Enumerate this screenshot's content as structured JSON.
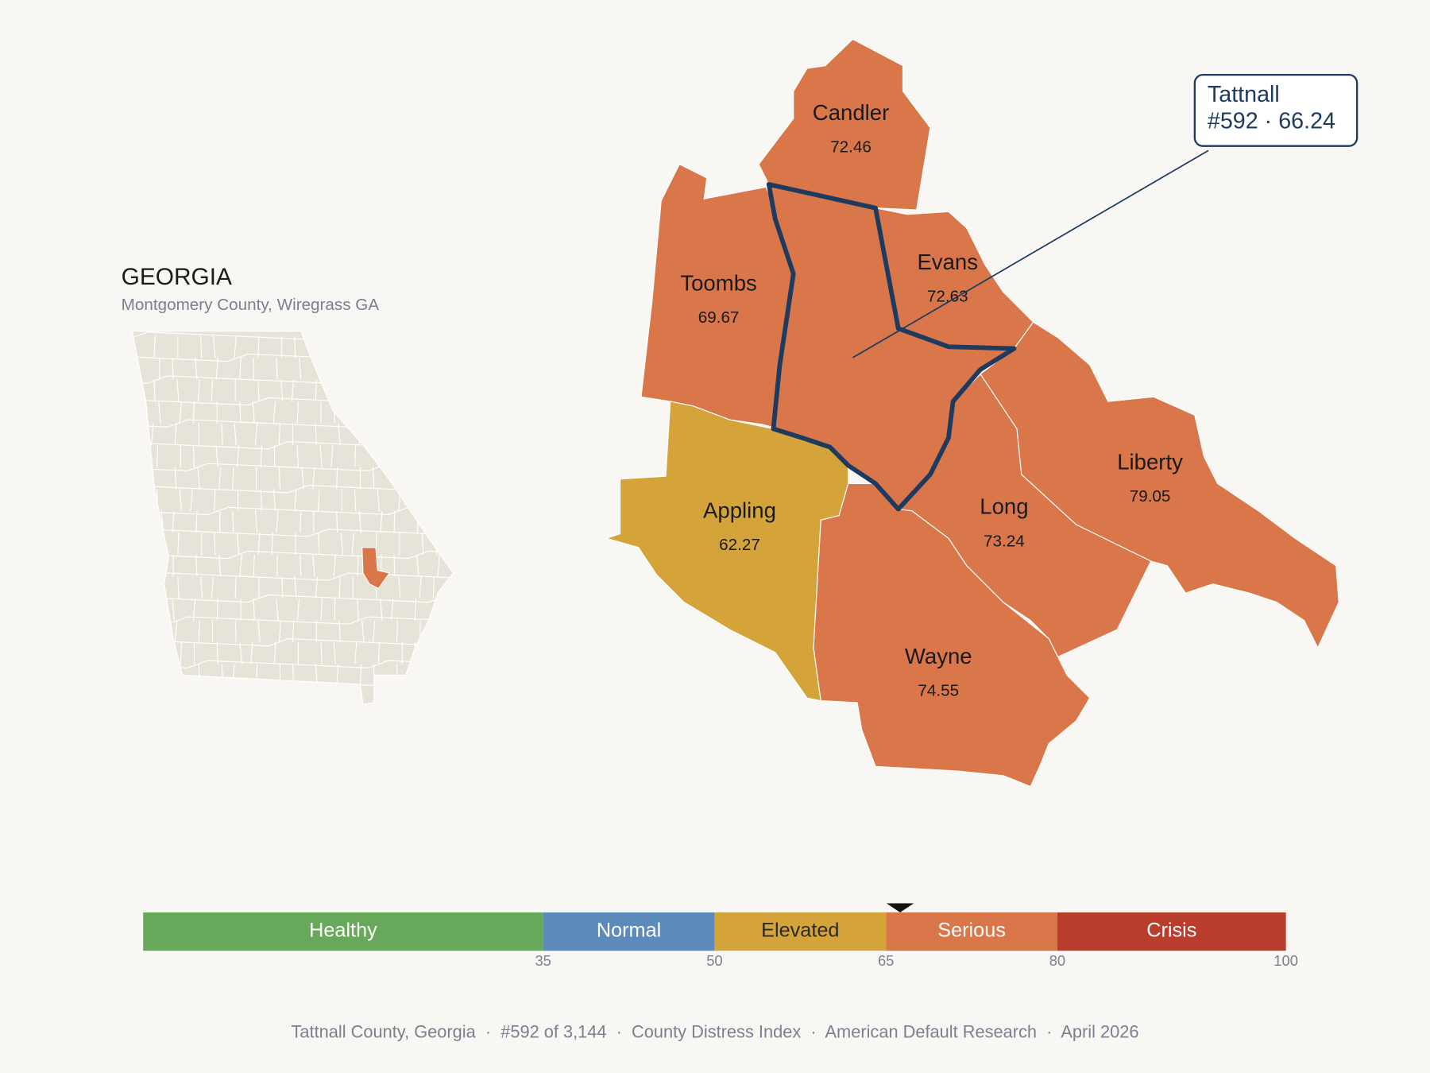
{
  "inset": {
    "title": "GEORGIA",
    "subtitle": "Montgomery County, Wiregrass GA",
    "base_color": "#e8e3d8",
    "highlight_color": "#d9764a"
  },
  "counties": [
    {
      "name": "Candler",
      "value": 72.46,
      "color": "#d9764a"
    },
    {
      "name": "Toombs",
      "value": 69.67,
      "color": "#d9764a"
    },
    {
      "name": "Evans",
      "value": 72.63,
      "color": "#d9764a"
    },
    {
      "name": "Liberty",
      "value": 79.05,
      "color": "#d9764a"
    },
    {
      "name": "Long",
      "value": 73.24,
      "color": "#d9764a"
    },
    {
      "name": "Wayne",
      "value": 74.55,
      "color": "#d9764a"
    },
    {
      "name": "Appling",
      "value": 62.27,
      "color": "#d4a43a"
    }
  ],
  "focus": {
    "name": "Tattnall",
    "value": 66.24,
    "label": "#592 · 66.24",
    "color": "#d9764a",
    "outline": "#1e3a5f"
  },
  "scale": {
    "xlim": [
      0,
      100
    ],
    "xticks": [
      35,
      50,
      65,
      80,
      100
    ],
    "bands": [
      {
        "name": "Healthy",
        "color": "#67a85a",
        "text_color": "#ffffff"
      },
      {
        "name": "Normal",
        "color": "#5b8abb",
        "text_color": "#ffffff"
      },
      {
        "name": "Elevated",
        "color": "#d4a43a",
        "text_color": "#2a2a2a"
      },
      {
        "name": "Serious",
        "color": "#d9764a",
        "text_color": "#ffffff"
      },
      {
        "name": "Crisis",
        "color": "#b83d2c",
        "text_color": "#ffffff"
      }
    ]
  },
  "footer": "Tattnall County, Georgia  ·  #592 of 3,144  ·  County Distress Index  ·  American Default Research  ·  April 2026"
}
